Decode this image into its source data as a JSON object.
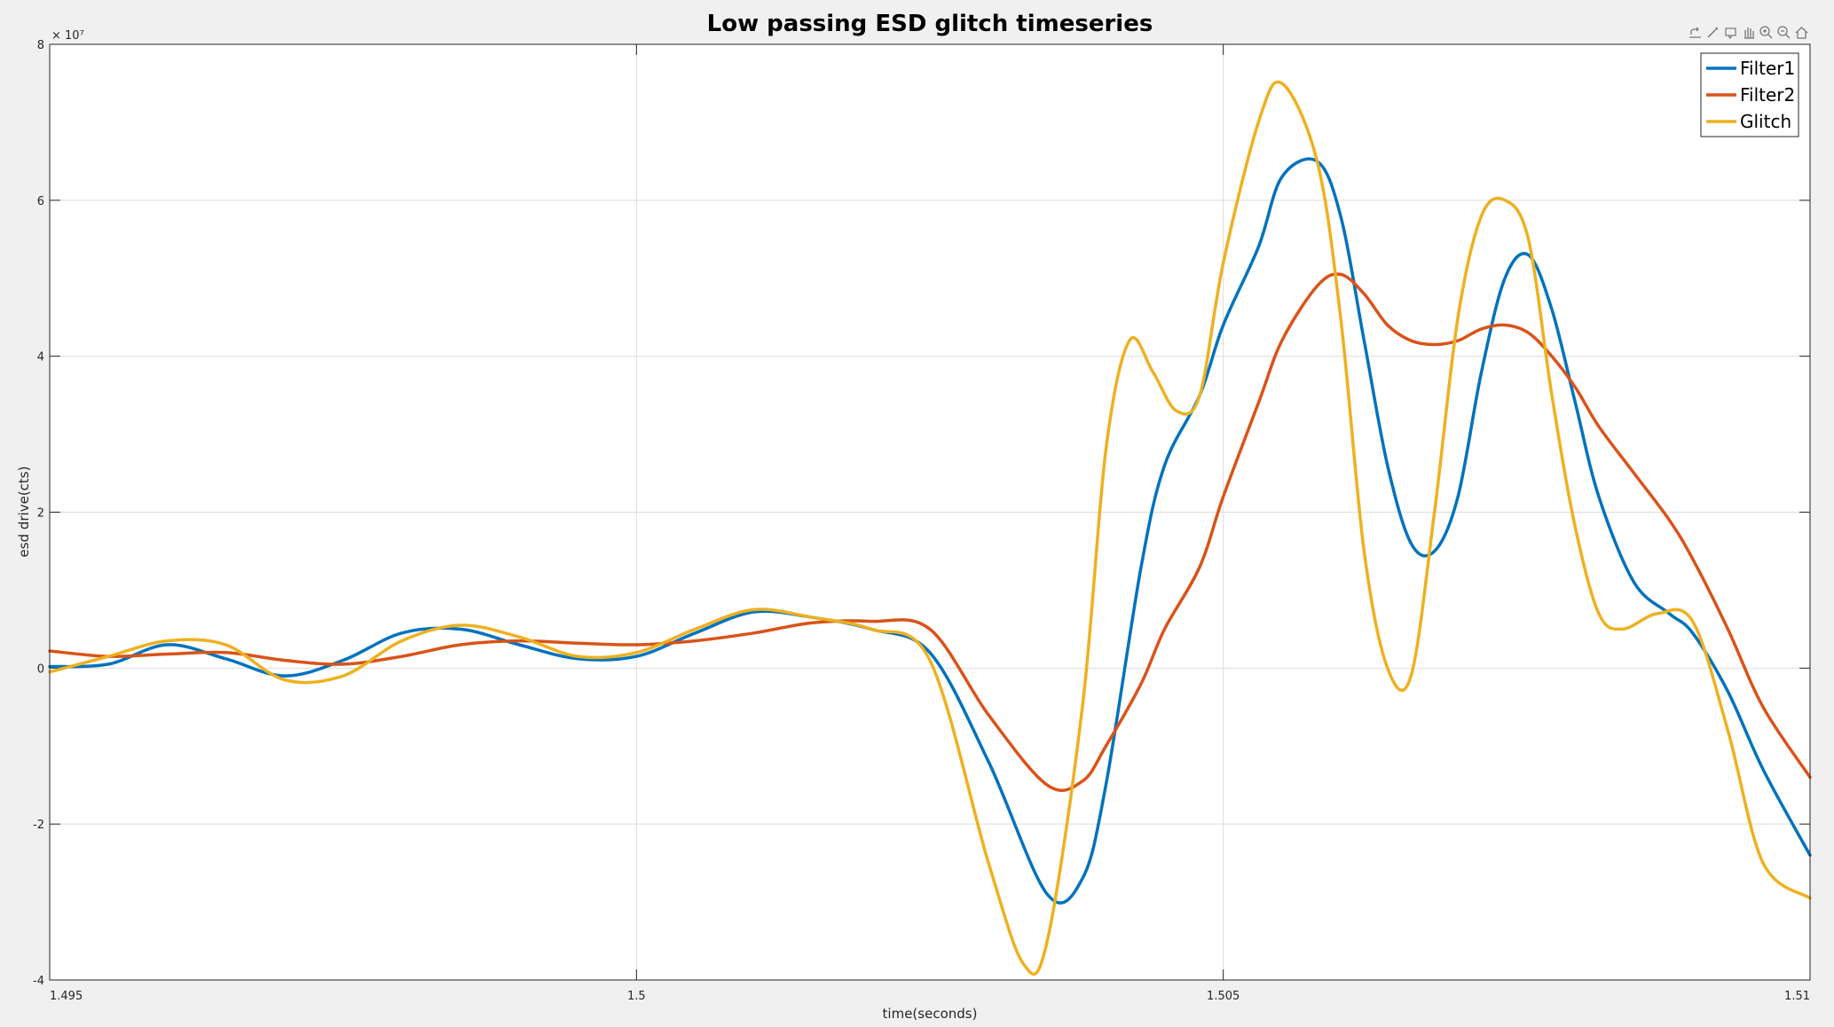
{
  "chart_data": {
    "type": "line",
    "title": "Low passing ESD glitch timeseries",
    "xlabel": "time(seconds)",
    "ylabel": "esd drive(cts)",
    "exponent_label": "× 10⁷",
    "xlim": [
      1.495,
      1.51
    ],
    "ylim": [
      -4,
      8
    ],
    "y_multiplier": 10000000,
    "xticks": [
      1.495,
      1.5,
      1.505,
      1.51
    ],
    "xtick_labels": [
      "1.495",
      "1.5",
      "1.505",
      "1.51"
    ],
    "yticks": [
      -4,
      -2,
      0,
      2,
      4,
      6,
      8
    ],
    "ytick_labels": [
      "-4",
      "-2",
      "0",
      "2",
      "4",
      "6",
      "8"
    ],
    "grid": true,
    "legend_position": "top-right",
    "series": [
      {
        "name": "Filter1",
        "color": "#0072BD",
        "x": [
          1.495,
          1.4955,
          1.496,
          1.4965,
          1.497,
          1.4975,
          1.498,
          1.4985,
          1.499,
          1.4995,
          1.5,
          1.5005,
          1.501,
          1.5015,
          1.502,
          1.5025,
          1.503,
          1.5035,
          1.5038,
          1.504,
          1.5043,
          1.5045,
          1.5048,
          1.505,
          1.5053,
          1.5055,
          1.5058,
          1.506,
          1.5062,
          1.5064,
          1.5066,
          1.5068,
          1.507,
          1.5072,
          1.5074,
          1.5076,
          1.5078,
          1.508,
          1.5082,
          1.5085,
          1.5088,
          1.509,
          1.5093,
          1.5096,
          1.51
        ],
        "y": [
          0.02,
          0.05,
          0.3,
          0.12,
          -0.1,
          0.1,
          0.45,
          0.5,
          0.3,
          0.12,
          0.15,
          0.45,
          0.72,
          0.65,
          0.5,
          0.2,
          -1.2,
          -2.9,
          -2.7,
          -1.5,
          1.3,
          2.6,
          3.5,
          4.4,
          5.4,
          6.3,
          6.5,
          5.8,
          4.2,
          2.6,
          1.6,
          1.5,
          2.2,
          3.8,
          5.0,
          5.3,
          4.6,
          3.4,
          2.2,
          1.1,
          0.7,
          0.45,
          -0.3,
          -1.3,
          -2.4
        ]
      },
      {
        "name": "Filter2",
        "color": "#D95319",
        "x": [
          1.495,
          1.4955,
          1.496,
          1.4965,
          1.497,
          1.4975,
          1.498,
          1.4985,
          1.499,
          1.4995,
          1.5,
          1.5005,
          1.501,
          1.5015,
          1.502,
          1.5025,
          1.503,
          1.5035,
          1.5038,
          1.504,
          1.5043,
          1.5045,
          1.5048,
          1.505,
          1.5053,
          1.5055,
          1.5058,
          1.506,
          1.5062,
          1.5064,
          1.5066,
          1.5068,
          1.507,
          1.5072,
          1.5074,
          1.5076,
          1.5078,
          1.508,
          1.5082,
          1.5085,
          1.5088,
          1.509,
          1.5093,
          1.5096,
          1.51
        ],
        "y": [
          0.22,
          0.15,
          0.18,
          0.2,
          0.1,
          0.05,
          0.15,
          0.3,
          0.35,
          0.32,
          0.3,
          0.35,
          0.45,
          0.58,
          0.6,
          0.5,
          -0.6,
          -1.5,
          -1.45,
          -1.0,
          -0.2,
          0.5,
          1.3,
          2.2,
          3.4,
          4.2,
          4.9,
          5.05,
          4.8,
          4.4,
          4.2,
          4.15,
          4.2,
          4.35,
          4.4,
          4.3,
          4.0,
          3.6,
          3.1,
          2.5,
          1.9,
          1.4,
          0.5,
          -0.5,
          -1.4
        ]
      },
      {
        "name": "Glitch",
        "color": "#EDB120",
        "x": [
          1.495,
          1.4955,
          1.496,
          1.4965,
          1.497,
          1.4975,
          1.498,
          1.4985,
          1.499,
          1.4995,
          1.5,
          1.5005,
          1.501,
          1.5015,
          1.502,
          1.5025,
          1.503,
          1.5033,
          1.5035,
          1.5038,
          1.504,
          1.5042,
          1.5044,
          1.5046,
          1.5048,
          1.505,
          1.5053,
          1.5055,
          1.5058,
          1.506,
          1.5062,
          1.5064,
          1.5066,
          1.5068,
          1.507,
          1.5072,
          1.5074,
          1.5076,
          1.5078,
          1.508,
          1.5082,
          1.5084,
          1.5087,
          1.509,
          1.5093,
          1.5096,
          1.51
        ],
        "y": [
          -0.05,
          0.15,
          0.35,
          0.3,
          -0.15,
          -0.1,
          0.35,
          0.55,
          0.4,
          0.15,
          0.2,
          0.5,
          0.75,
          0.65,
          0.5,
          0.1,
          -2.5,
          -3.8,
          -3.5,
          -0.5,
          2.8,
          4.2,
          3.8,
          3.3,
          3.5,
          5.2,
          7.0,
          7.5,
          6.5,
          4.5,
          1.5,
          0.0,
          -0.1,
          2.0,
          4.5,
          5.8,
          6.0,
          5.5,
          3.5,
          1.8,
          0.7,
          0.5,
          0.7,
          0.6,
          -0.8,
          -2.5,
          -2.95
        ]
      }
    ]
  }
}
